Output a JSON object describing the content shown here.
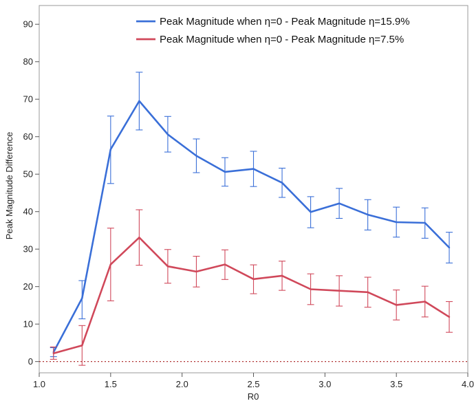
{
  "chart_data": {
    "type": "line",
    "title": "",
    "xlabel": "R0",
    "ylabel": "Peak Magnitude Difference",
    "xlim": [
      1.0,
      4.0
    ],
    "ylim": [
      -3,
      95
    ],
    "xticks": [
      "1.0",
      "1.5",
      "2.0",
      "2.5",
      "3.0",
      "3.5",
      "4.0"
    ],
    "yticks": [
      "0",
      "10",
      "20",
      "30",
      "40",
      "50",
      "60",
      "70",
      "80",
      "90"
    ],
    "grid": false,
    "legend_position": "top-right",
    "reference_line": {
      "y": 0,
      "style": "dotted",
      "color": "#b03030"
    },
    "x": [
      1.1,
      1.3,
      1.5,
      1.7,
      1.9,
      2.1,
      2.3,
      2.5,
      2.7,
      2.9,
      3.1,
      3.3,
      3.5,
      3.7,
      3.87
    ],
    "series": [
      {
        "name": "Peak Magnitude when η=0 - Peak Magnitude η=15.9%",
        "color": "#3a6fd8",
        "values": [
          2.5,
          16.9,
          56.6,
          69.5,
          60.6,
          54.9,
          50.6,
          51.4,
          47.7,
          39.9,
          42.2,
          39.2,
          37.2,
          37.0,
          30.4
        ],
        "error_low": [
          1.3,
          11.4,
          47.5,
          61.8,
          55.9,
          50.4,
          46.8,
          46.7,
          43.8,
          35.7,
          38.2,
          35.1,
          33.2,
          32.9,
          26.3
        ],
        "error_high": [
          3.7,
          21.6,
          65.5,
          77.2,
          65.4,
          59.4,
          54.4,
          56.1,
          51.6,
          44.0,
          46.2,
          43.2,
          41.2,
          41.0,
          34.5
        ]
      },
      {
        "name": "Peak Magnitude when η=0 - Peak Magnitude η=7.5%",
        "color": "#d0485a",
        "values": [
          2.2,
          4.3,
          25.9,
          33.1,
          25.4,
          24.0,
          25.9,
          22.0,
          22.9,
          19.3,
          18.9,
          18.5,
          15.1,
          16.0,
          11.9
        ],
        "error_low": [
          0.6,
          -1.0,
          16.2,
          25.7,
          20.9,
          19.9,
          21.9,
          18.1,
          19.0,
          15.2,
          14.8,
          14.5,
          11.1,
          11.9,
          7.8
        ],
        "error_high": [
          3.9,
          9.6,
          35.6,
          40.5,
          29.9,
          28.1,
          29.8,
          25.8,
          26.8,
          23.4,
          22.9,
          22.5,
          19.1,
          20.1,
          16.0
        ]
      }
    ]
  }
}
